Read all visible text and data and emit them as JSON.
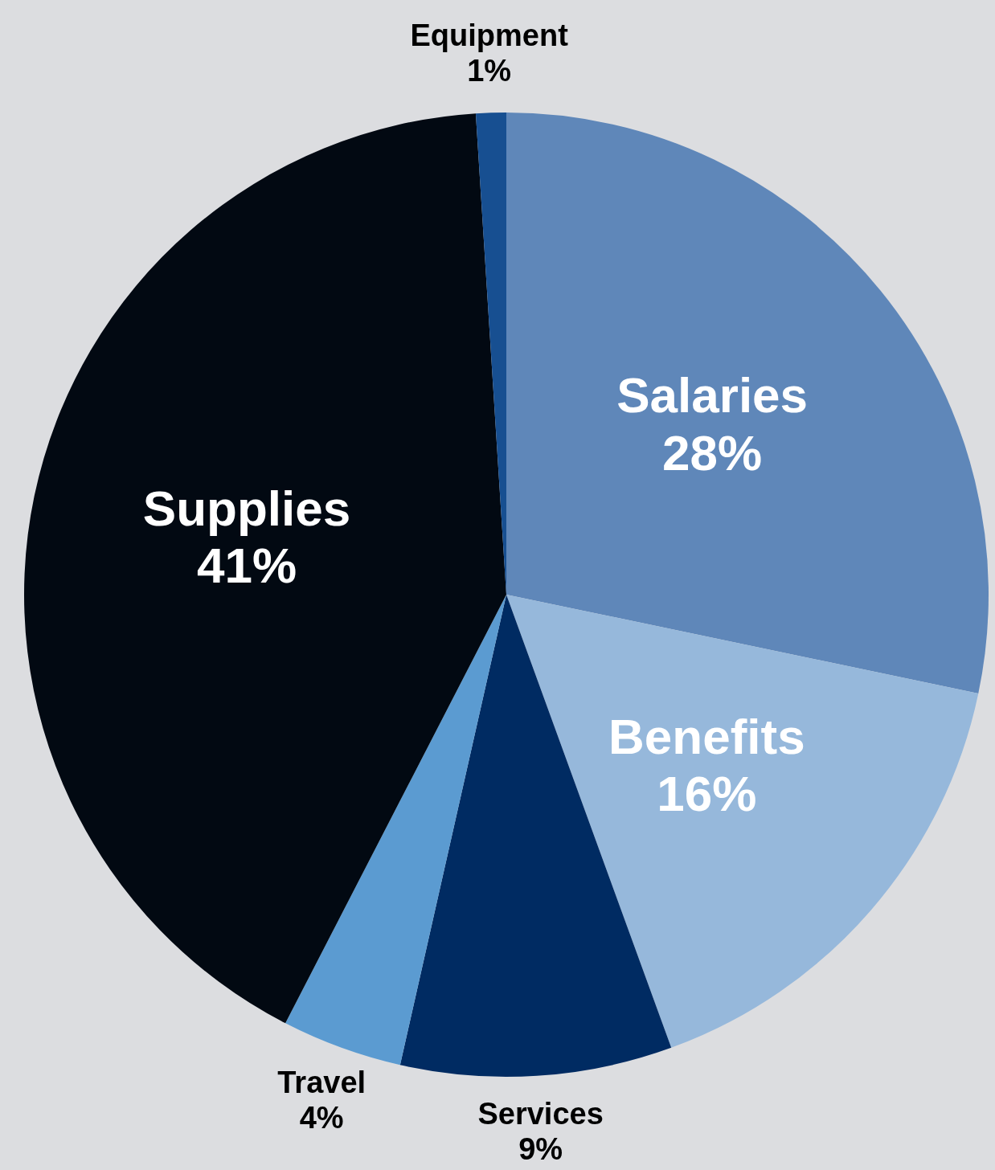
{
  "chart_data": {
    "type": "pie",
    "categories": [
      "Salaries",
      "Benefits",
      "Services",
      "Travel",
      "Supplies",
      "Equipment"
    ],
    "values": [
      28,
      16,
      9,
      4,
      41,
      1
    ],
    "value_labels": [
      "28%",
      "16%",
      "9%",
      "4%",
      "41%",
      "1%"
    ],
    "colors": [
      "#5f87b9",
      "#96b8db",
      "#002b62",
      "#5b9bd1",
      "#020912",
      "#174f91"
    ],
    "legend": false
  }
}
